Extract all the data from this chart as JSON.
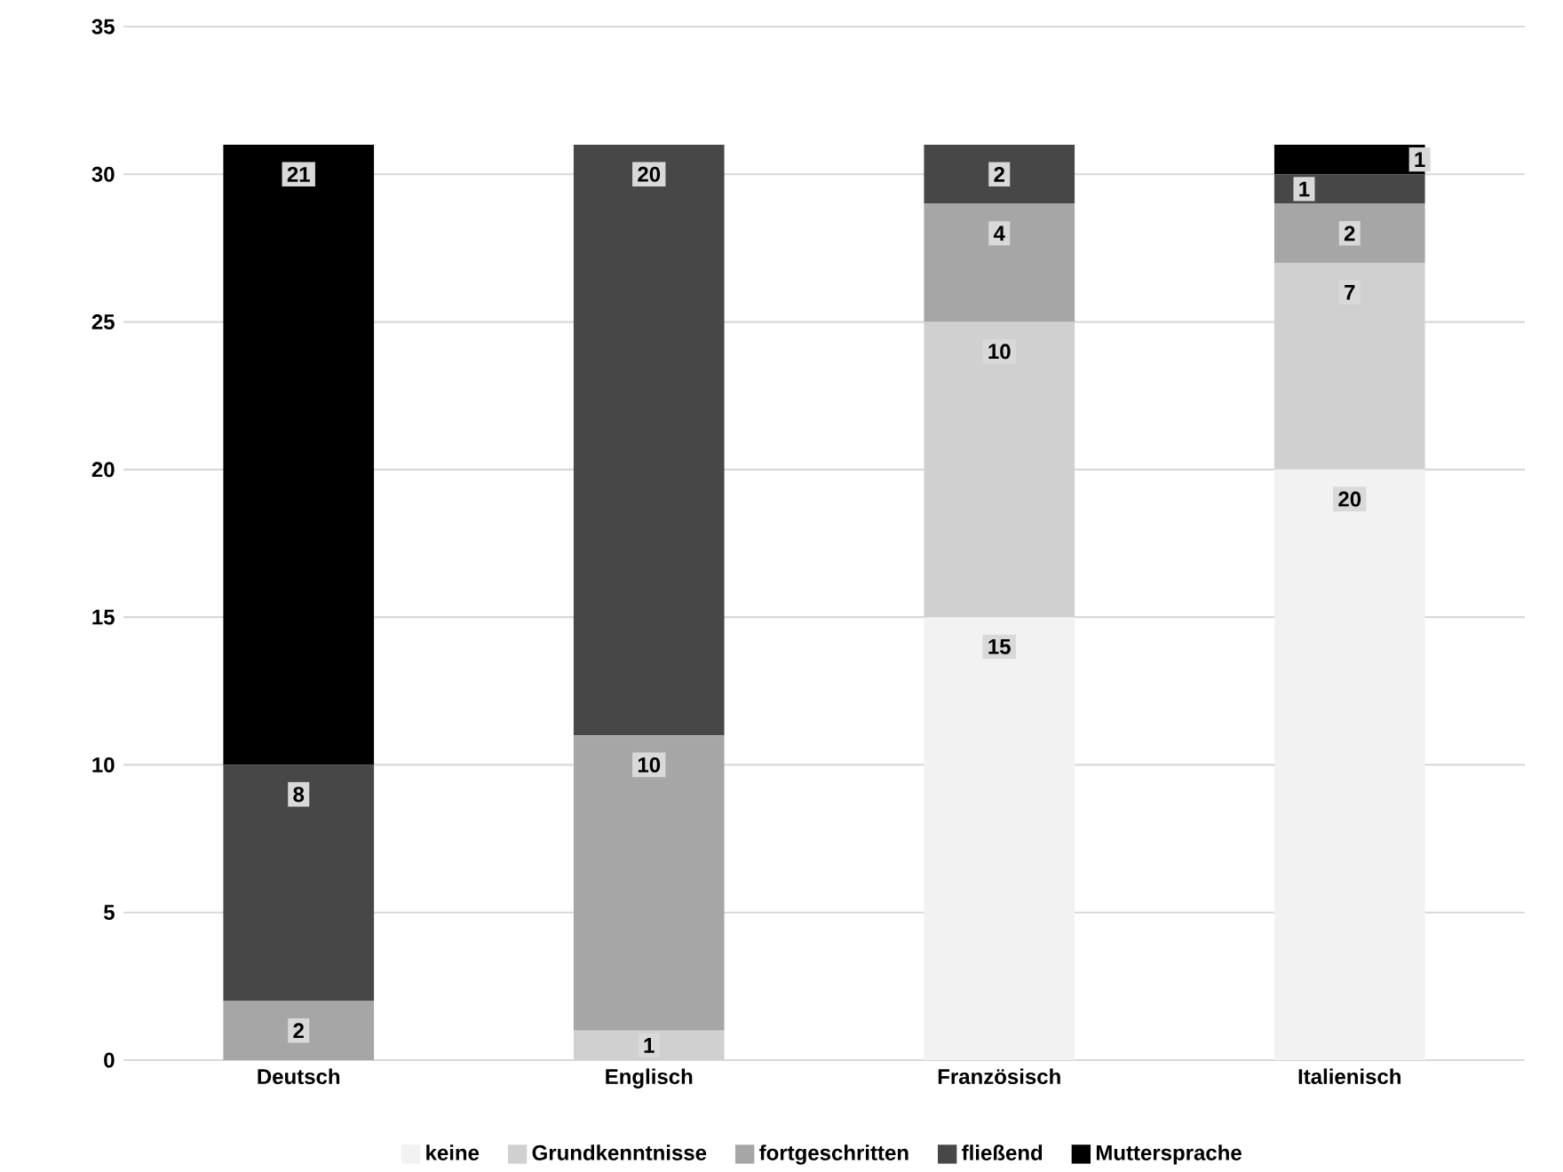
{
  "chart_data": {
    "type": "bar",
    "stacked": true,
    "categories": [
      "Deutsch",
      "Englisch",
      "Französisch",
      "Italienisch"
    ],
    "series": [
      {
        "name": "keine",
        "color": "#f2f2f2",
        "values": [
          0,
          0,
          15,
          20
        ],
        "value_labels": [
          null,
          null,
          "15",
          "20"
        ]
      },
      {
        "name": "Grundkenntnisse",
        "color": "#d0d0d0",
        "values": [
          0,
          1,
          10,
          7
        ],
        "value_labels": [
          null,
          "1",
          "10",
          "7"
        ]
      },
      {
        "name": "fortgeschritten",
        "color": "#a6a6a6",
        "values": [
          2,
          10,
          4,
          2
        ],
        "value_labels": [
          "2",
          "10",
          "4",
          "2"
        ]
      },
      {
        "name": "fließend",
        "color": "#474747",
        "values": [
          8,
          20,
          2,
          1
        ],
        "value_labels": [
          "8",
          "20",
          "2",
          "1"
        ]
      },
      {
        "name": "Muttersprache",
        "color": "#000000",
        "values": [
          21,
          0,
          0,
          1
        ],
        "value_labels": [
          "21",
          null,
          null,
          "1"
        ]
      }
    ],
    "ylim": [
      0,
      35
    ],
    "yticks": [
      0,
      5,
      10,
      15,
      20,
      25,
      30,
      35
    ],
    "grid": "y",
    "legend": "bottom"
  }
}
